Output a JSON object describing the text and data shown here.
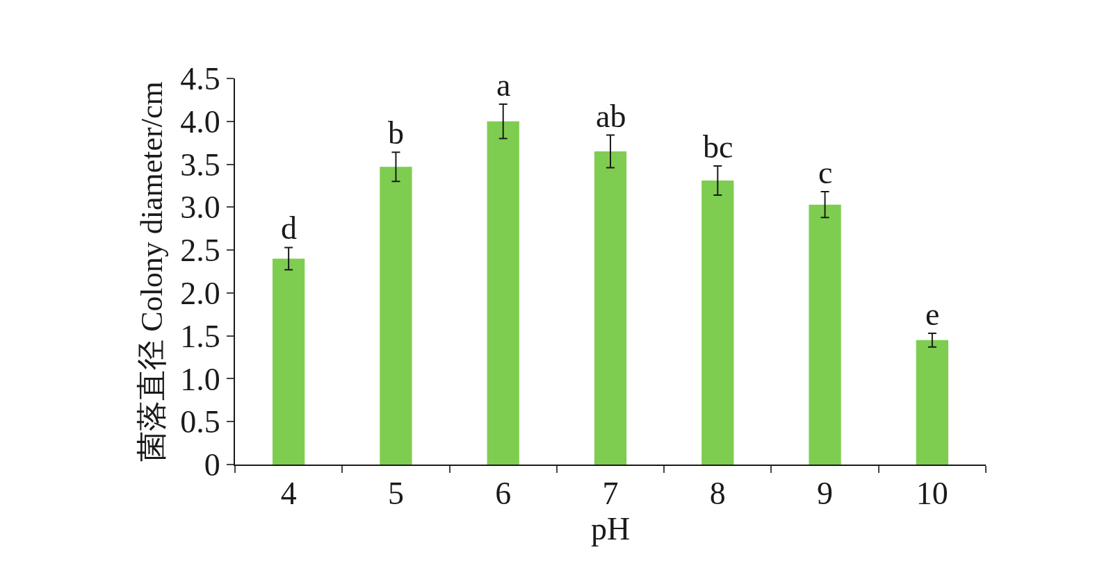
{
  "chart_data": {
    "type": "bar",
    "xlabel": "pH",
    "ylabel": "菌落直径 Colony diameter/cm",
    "categories": [
      "4",
      "5",
      "6",
      "7",
      "8",
      "9",
      "10"
    ],
    "values": [
      2.4,
      3.47,
      4.0,
      3.65,
      3.31,
      3.03,
      1.45
    ],
    "errors": [
      0.13,
      0.17,
      0.2,
      0.19,
      0.17,
      0.15,
      0.08
    ],
    "color": "#7ecd50",
    "ylim": [
      0,
      4.5
    ],
    "yticks": [
      0,
      0.5,
      {
        "value": 1,
        "label": "1.0"
      },
      1.5,
      {
        "value": 2,
        "label": "2.0"
      },
      2.5,
      {
        "value": 3,
        "label": "3.0"
      },
      3.5,
      {
        "value": 4,
        "label": "4.0"
      },
      4.5
    ],
    "grid": false,
    "annotations": [
      {
        "text": "d",
        "x": "4",
        "y": 2.53
      },
      {
        "text": "b",
        "x": "5",
        "y": 3.64
      },
      {
        "text": "a",
        "x": "6",
        "y": 4.2
      },
      {
        "text": "ab",
        "x": "7",
        "y": 3.84
      },
      {
        "text": "bc",
        "x": "8",
        "y": 3.48
      },
      {
        "text": "c",
        "x": "9",
        "y": 3.18
      },
      {
        "text": "e",
        "x": "10",
        "y": 1.53
      }
    ]
  }
}
